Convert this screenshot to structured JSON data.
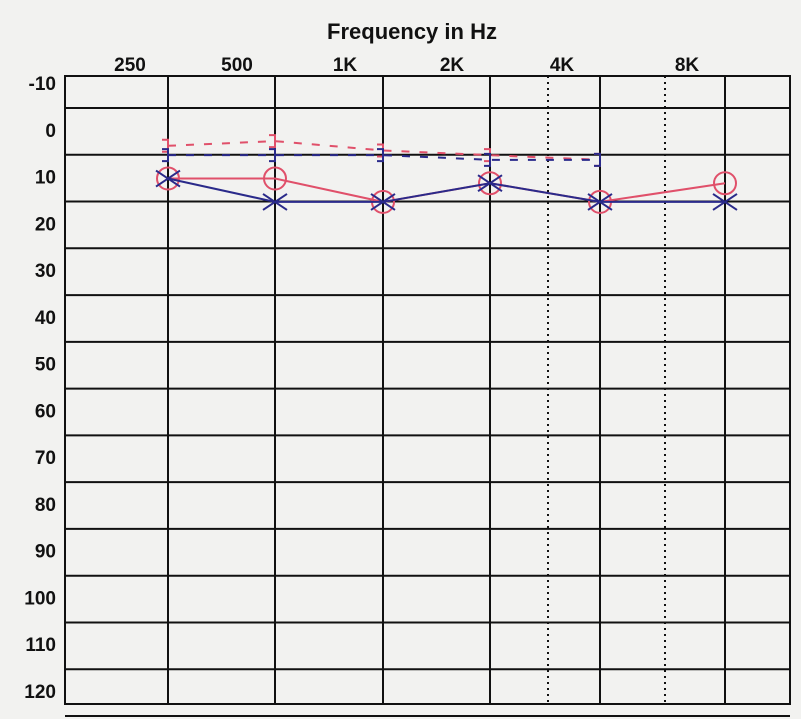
{
  "chart_data": {
    "type": "line",
    "title": "Frequency in Hz",
    "categories": [
      "250",
      "500",
      "1K",
      "2K",
      "4K",
      "8K"
    ],
    "series": [
      {
        "color": "#e0506a",
        "marker": "circle",
        "values": [
          10,
          10,
          15,
          11,
          15,
          11
        ]
      },
      {
        "color": "#2a2a8a",
        "marker": "x",
        "values": [
          10,
          15,
          15,
          11,
          15,
          15
        ]
      },
      {
        "color": "#e0506a",
        "marker": "bracket",
        "dashed": true,
        "values": [
          3,
          2,
          4,
          5,
          6,
          null
        ]
      },
      {
        "color": "#2a2a8a",
        "marker": "bracket",
        "dashed": true,
        "values": [
          5,
          5,
          5,
          6,
          6,
          null
        ]
      }
    ],
    "ylim": [
      -10,
      120
    ],
    "inverted": true,
    "yticks": [
      -10,
      0,
      10,
      20,
      30,
      40,
      50,
      60,
      70,
      80,
      90,
      100,
      110,
      120
    ],
    "grid": true
  }
}
